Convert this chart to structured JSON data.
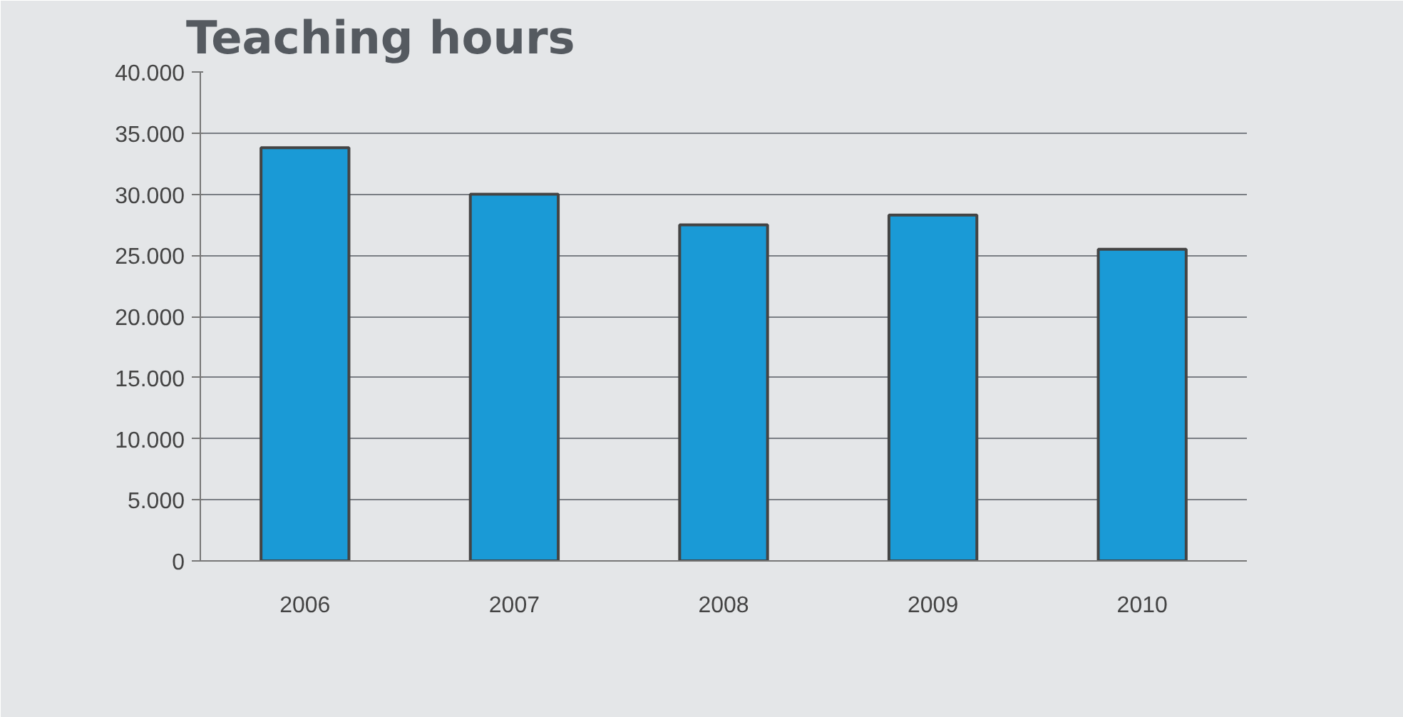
{
  "chart_data": {
    "type": "bar",
    "title": "Teaching hours",
    "categories": [
      "2006",
      "2007",
      "2008",
      "2009",
      "2010"
    ],
    "values": [
      33800,
      30000,
      27500,
      28300,
      25500
    ],
    "color": "#1a9ad6",
    "ylim": [
      0,
      40000
    ],
    "yticks": [
      {
        "value": 0,
        "label": "0"
      },
      {
        "value": 5000,
        "label": "5.000"
      },
      {
        "value": 10000,
        "label": "10.000"
      },
      {
        "value": 15000,
        "label": "15.000"
      },
      {
        "value": 20000,
        "label": "20.000"
      },
      {
        "value": 25000,
        "label": "25.000"
      },
      {
        "value": 30000,
        "label": "30.000"
      },
      {
        "value": 35000,
        "label": "35.000"
      },
      {
        "value": 40000,
        "label": "40.000"
      }
    ],
    "grid": "y"
  }
}
